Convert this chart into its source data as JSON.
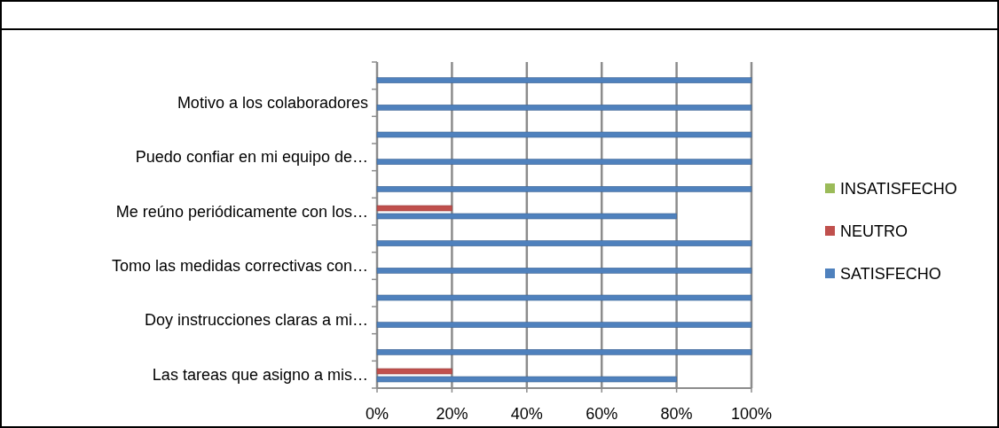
{
  "chart_data": {
    "type": "bar",
    "orientation": "horizontal",
    "categories": [
      null,
      "Motivo a los colaboradores",
      null,
      "Puedo confiar en mi equipo de…",
      null,
      "Me reúno periódicamente con los…",
      null,
      "Tomo las medidas correctivas con…",
      null,
      "Doy instrucciones claras a mi…",
      null,
      "Las tareas que asigno a mis…"
    ],
    "series": [
      {
        "name": "SATISFECHO",
        "color": "#4f81bd",
        "values": [
          100,
          100,
          100,
          100,
          100,
          80,
          100,
          100,
          100,
          100,
          100,
          80
        ]
      },
      {
        "name": "NEUTRO",
        "color": "#c0504d",
        "values": [
          0,
          0,
          0,
          0,
          0,
          20,
          0,
          0,
          0,
          0,
          0,
          20
        ]
      },
      {
        "name": "INSATISFECHO",
        "color": "#9bbb59",
        "values": [
          0,
          0,
          0,
          0,
          0,
          0,
          0,
          0,
          0,
          0,
          0,
          0
        ]
      }
    ],
    "xlim": [
      0,
      100
    ],
    "xticks": [
      {
        "value": 0,
        "label": "0%"
      },
      {
        "value": 20,
        "label": "20%"
      },
      {
        "value": 40,
        "label": "40%"
      },
      {
        "value": 60,
        "label": "60%"
      },
      {
        "value": 80,
        "label": "80%"
      },
      {
        "value": 100,
        "label": "100%"
      }
    ],
    "grid": "x",
    "legend": "right"
  }
}
